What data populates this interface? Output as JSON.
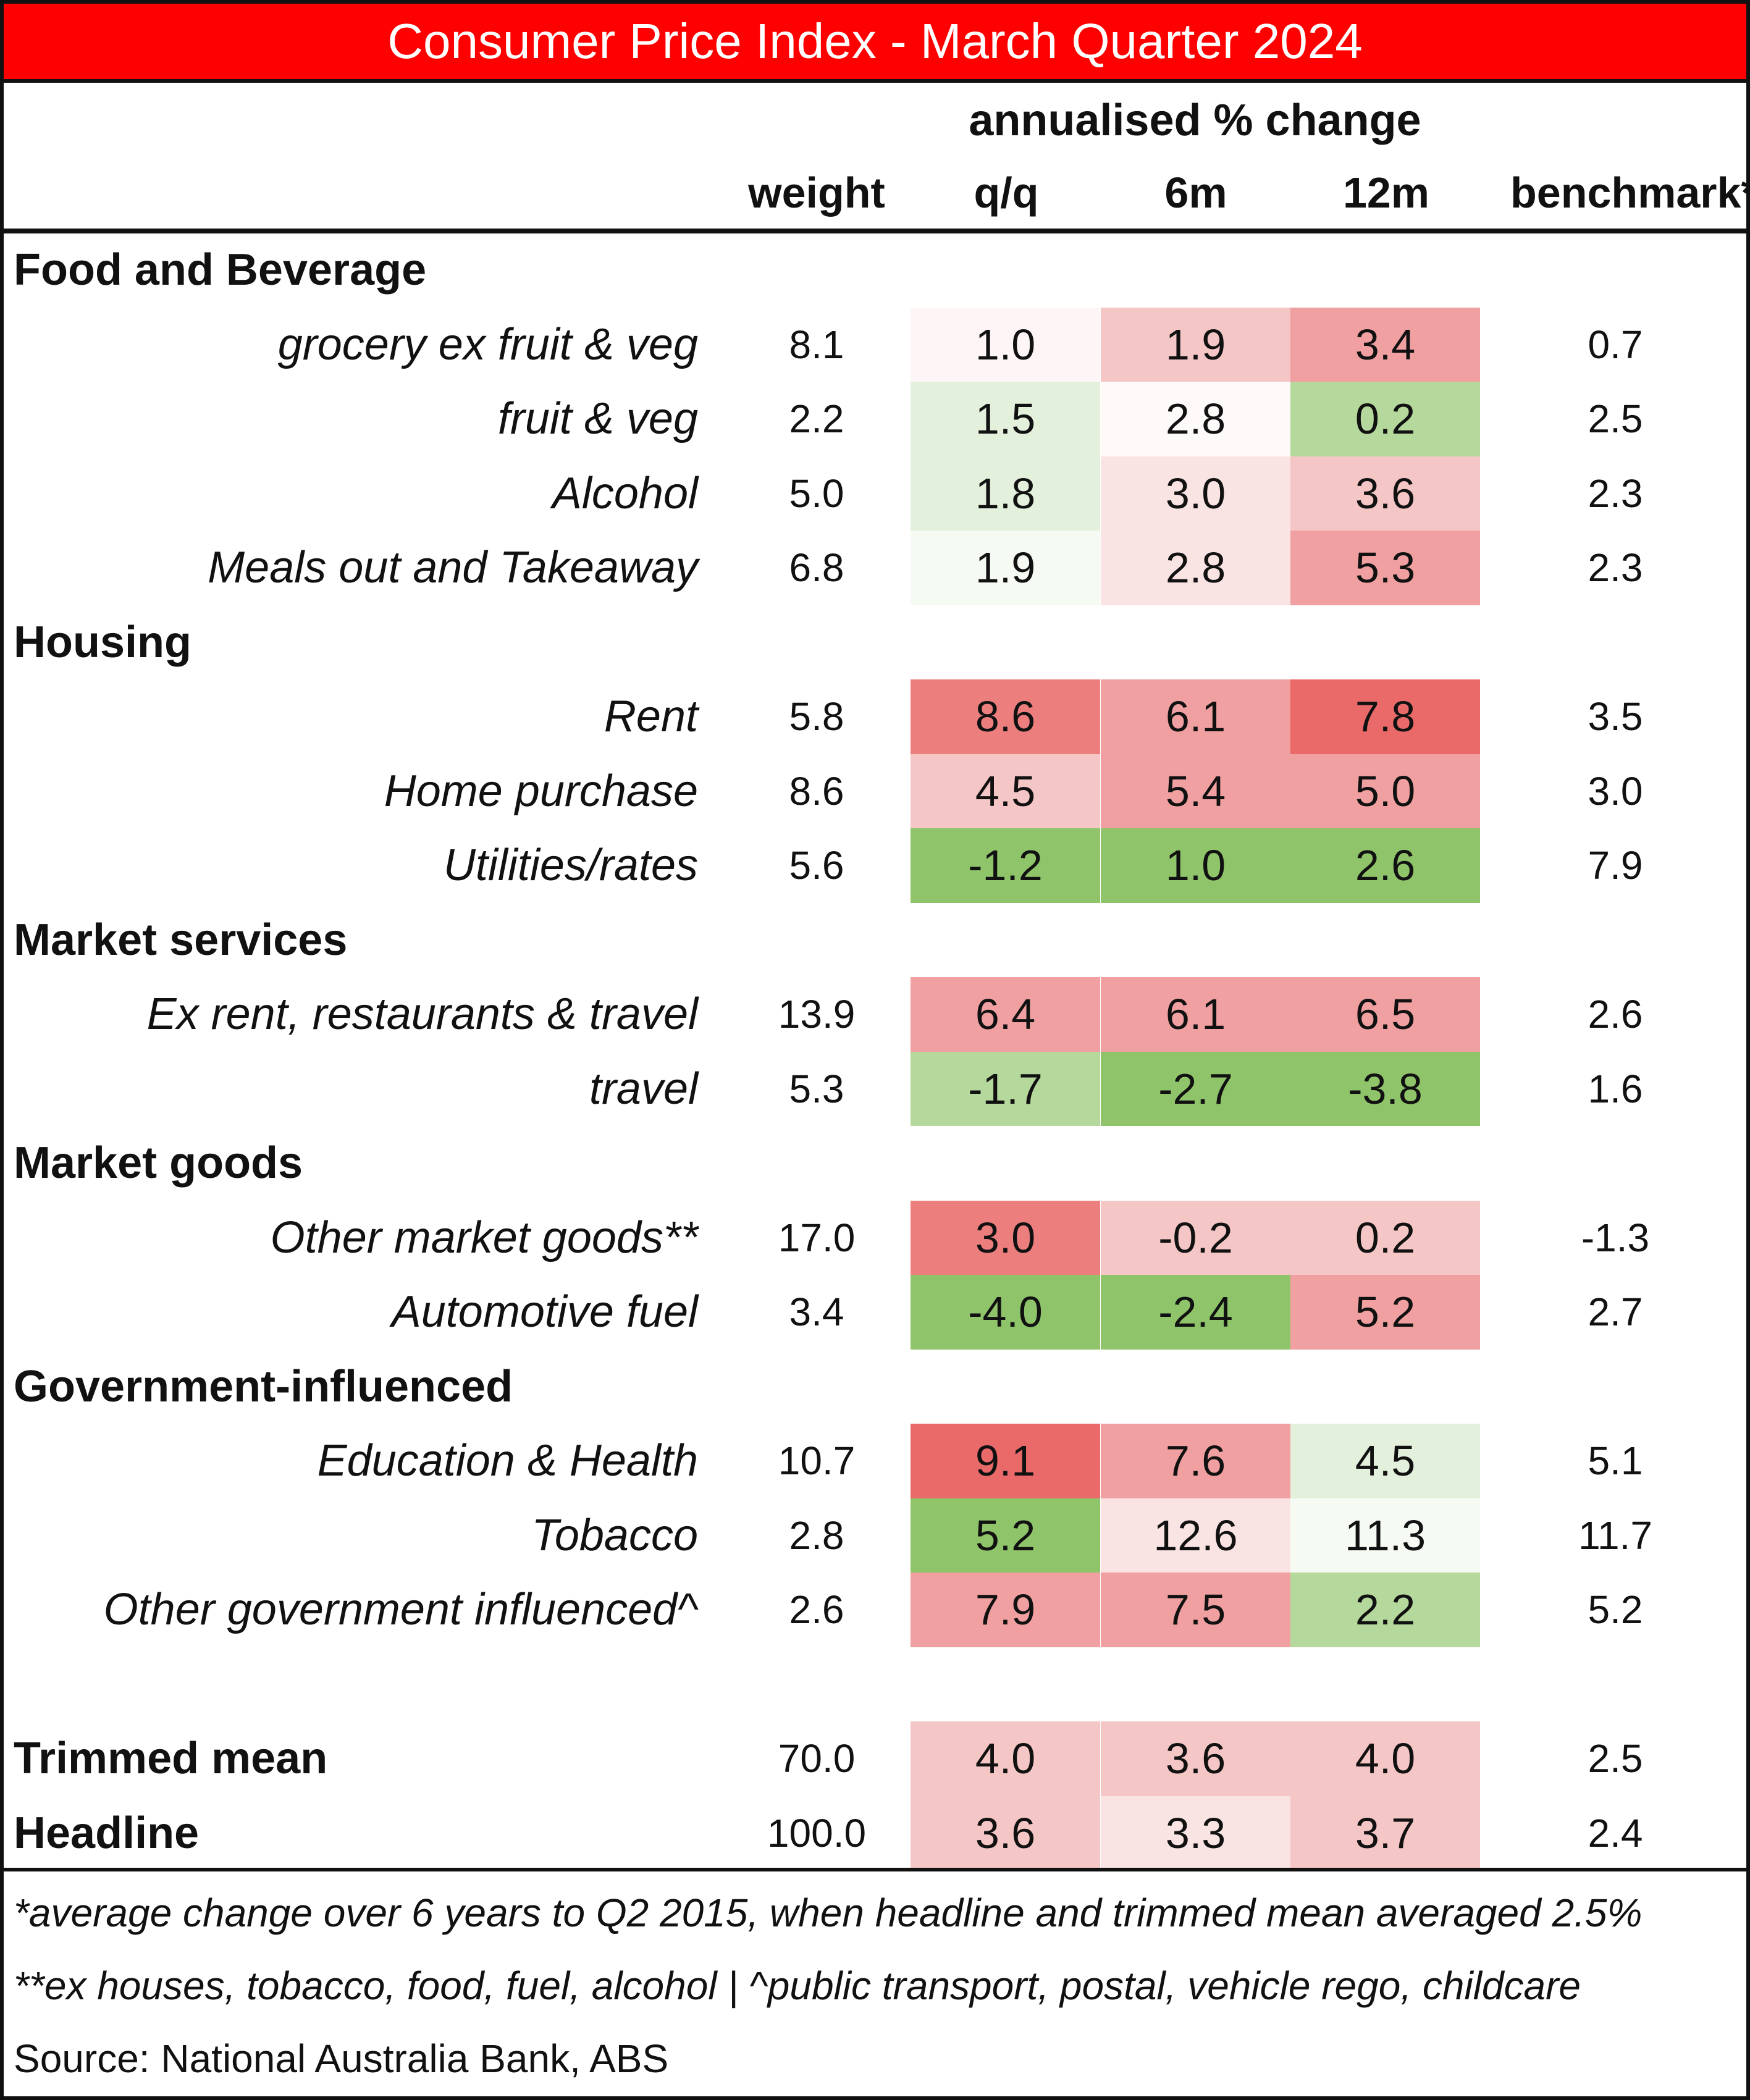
{
  "chart_data": {
    "type": "table",
    "title": "Consumer Price Index - March Quarter 2024",
    "group_header": "annualised % change",
    "columns": [
      "weight",
      "q/q",
      "6m",
      "12m",
      "benchmark*"
    ],
    "rows": [
      {
        "section": "Food and Beverage"
      },
      {
        "label": "grocery ex fruit & veg",
        "weight": "8.1",
        "qq": "1.0",
        "m6": "1.9",
        "m12": "3.4",
        "benchmark": "0.7"
      },
      {
        "label": "fruit & veg",
        "weight": "2.2",
        "qq": "1.5",
        "m6": "2.8",
        "m12": "0.2",
        "benchmark": "2.5"
      },
      {
        "label": "Alcohol",
        "weight": "5.0",
        "qq": "1.8",
        "m6": "3.0",
        "m12": "3.6",
        "benchmark": "2.3"
      },
      {
        "label": "Meals out and Takeaway",
        "weight": "6.8",
        "qq": "1.9",
        "m6": "2.8",
        "m12": "5.3",
        "benchmark": "2.3"
      },
      {
        "section": "Housing"
      },
      {
        "label": "Rent",
        "weight": "5.8",
        "qq": "8.6",
        "m6": "6.1",
        "m12": "7.8",
        "benchmark": "3.5"
      },
      {
        "label": "Home purchase",
        "weight": "8.6",
        "qq": "4.5",
        "m6": "5.4",
        "m12": "5.0",
        "benchmark": "3.0"
      },
      {
        "label": "Utilities/rates",
        "weight": "5.6",
        "qq": "-1.2",
        "m6": "1.0",
        "m12": "2.6",
        "benchmark": "7.9"
      },
      {
        "section": "Market services"
      },
      {
        "label": "Ex rent, restaurants & travel",
        "weight": "13.9",
        "qq": "6.4",
        "m6": "6.1",
        "m12": "6.5",
        "benchmark": "2.6"
      },
      {
        "label": "travel",
        "weight": "5.3",
        "qq": "-1.7",
        "m6": "-2.7",
        "m12": "-3.8",
        "benchmark": "1.6"
      },
      {
        "section": "Market goods"
      },
      {
        "label": "Other market goods**",
        "weight": "17.0",
        "qq": "3.0",
        "m6": "-0.2",
        "m12": "0.2",
        "benchmark": "-1.3"
      },
      {
        "label": "Automotive fuel",
        "weight": "3.4",
        "qq": "-4.0",
        "m6": "-2.4",
        "m12": "5.2",
        "benchmark": "2.7"
      },
      {
        "section": "Government-influenced"
      },
      {
        "label": "Education & Health",
        "weight": "10.7",
        "qq": "9.1",
        "m6": "7.6",
        "m12": "4.5",
        "benchmark": "5.1"
      },
      {
        "label": "Tobacco",
        "weight": "2.8",
        "qq": "5.2",
        "m6": "12.6",
        "m12": "11.3",
        "benchmark": "11.7"
      },
      {
        "label": "Other government influenced^",
        "weight": "2.6",
        "qq": "7.9",
        "m6": "7.5",
        "m12": "2.2",
        "benchmark": "5.2"
      },
      {
        "spacer": true
      },
      {
        "total": "Trimmed mean",
        "weight": "70.0",
        "qq": "4.0",
        "m6": "3.6",
        "m12": "4.0",
        "benchmark": "2.5"
      },
      {
        "total": "Headline",
        "weight": "100.0",
        "qq": "3.6",
        "m6": "3.3",
        "m12": "3.7",
        "benchmark": "2.4"
      }
    ],
    "cell_colors": {
      "grocery ex fruit & veg": [
        "#fef6f6",
        "#f5c6c6",
        "#f0a0a0"
      ],
      "fruit & veg": [
        "#e3f0dc",
        "#fefafa",
        "#b5d89c"
      ],
      "Alcohol": [
        "#e3f0dc",
        "#fae3e3",
        "#f5c6c6"
      ],
      "Meals out and Takeaway": [
        "#f5faf2",
        "#fae3e3",
        "#f0a0a0"
      ],
      "Rent": [
        "#ec7e7e",
        "#f0a0a0",
        "#ea6a6a"
      ],
      "Home purchase": [
        "#f5c6c6",
        "#f0a0a0",
        "#f0a0a0"
      ],
      "Utilities/rates": [
        "#8fc46a",
        "#8fc46a",
        "#8fc46a"
      ],
      "Ex rent, restaurants & travel": [
        "#f0a0a0",
        "#f0a0a0",
        "#f0a0a0"
      ],
      "travel": [
        "#b5d89c",
        "#8fc46a",
        "#8fc46a"
      ],
      "Other market goods**": [
        "#ec7e7e",
        "#f5c6c6",
        "#f5c6c6"
      ],
      "Automotive fuel": [
        "#8fc46a",
        "#8fc46a",
        "#f0a0a0"
      ],
      "Education & Health": [
        "#ea6a6a",
        "#f0a0a0",
        "#e3f0dc"
      ],
      "Tobacco": [
        "#8fc46a",
        "#fae3e3",
        "#f5faf2"
      ],
      "Other government influenced^": [
        "#f0a0a0",
        "#f0a0a0",
        "#b5d89c"
      ],
      "Trimmed mean": [
        "#f5c6c6",
        "#f5c6c6",
        "#f5c6c6"
      ],
      "Headline": [
        "#f5c6c6",
        "#fae3e3",
        "#f5c6c6"
      ]
    },
    "footnotes": [
      "*average change over 6 years to Q2 2015, when headline and trimmed mean averaged 2.5%",
      "**ex houses, tobacco, food, fuel, alcohol | ^public transport, postal, vehicle rego, childcare"
    ],
    "source": "Source: National Australia Bank, ABS"
  }
}
